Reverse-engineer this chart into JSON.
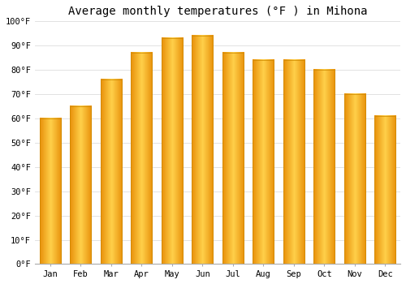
{
  "title": "Average monthly temperatures (°F ) in Mihona",
  "months": [
    "Jan",
    "Feb",
    "Mar",
    "Apr",
    "May",
    "Jun",
    "Jul",
    "Aug",
    "Sep",
    "Oct",
    "Nov",
    "Dec"
  ],
  "values": [
    60,
    65,
    76,
    87,
    93,
    94,
    87,
    84,
    84,
    80,
    70,
    61
  ],
  "bar_color_light": "#FFD04A",
  "bar_color_dark": "#E8900A",
  "bar_edge_color": "#CC8800",
  "background_color": "#FFFFFF",
  "grid_color": "#DDDDDD",
  "ylim": [
    0,
    100
  ],
  "yticks": [
    0,
    10,
    20,
    30,
    40,
    50,
    60,
    70,
    80,
    90,
    100
  ],
  "ytick_labels": [
    "0°F",
    "10°F",
    "20°F",
    "30°F",
    "40°F",
    "50°F",
    "60°F",
    "70°F",
    "80°F",
    "90°F",
    "100°F"
  ],
  "title_fontsize": 10,
  "tick_fontsize": 7.5,
  "title_font": "monospace",
  "tick_font": "monospace",
  "bar_width": 0.7,
  "figsize": [
    5.0,
    3.5
  ],
  "dpi": 100
}
